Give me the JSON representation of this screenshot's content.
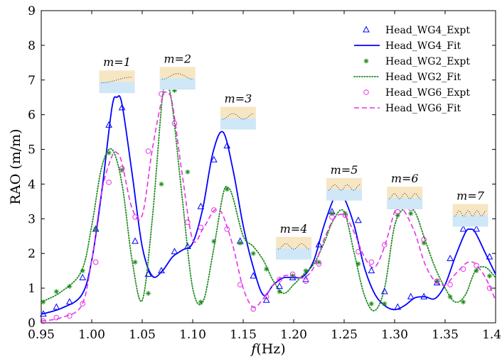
{
  "chart_data": {
    "type": "line",
    "title": "",
    "xlabel_var": "f",
    "xlabel_unit": "(Hz)",
    "ylabel": "RAO (m/m)",
    "xlim": [
      0.95,
      1.4
    ],
    "ylim": [
      0,
      9
    ],
    "xticks": [
      "0.95",
      "1.00",
      "1.05",
      "1.10",
      "1.15",
      "1.20",
      "1.25",
      "1.30",
      "1.35",
      "1.40"
    ],
    "yticks": [
      "0",
      "1",
      "2",
      "3",
      "4",
      "5",
      "6",
      "7",
      "8",
      "9"
    ],
    "grid": false,
    "legend_position": "top-right",
    "series": [
      {
        "name": "Head_WG4_Expt",
        "style": "triangle-marker",
        "color": "#0000ff",
        "x": [
          0.952,
          0.965,
          0.978,
          0.991,
          1.004,
          1.017,
          1.03,
          1.043,
          1.056,
          1.069,
          1.082,
          1.095,
          1.108,
          1.121,
          1.134,
          1.147,
          1.16,
          1.173,
          1.186,
          1.199,
          1.212,
          1.225,
          1.238,
          1.251,
          1.264,
          1.277,
          1.29,
          1.303,
          1.316,
          1.329,
          1.342,
          1.355,
          1.368,
          1.381,
          1.394
        ],
        "y": [
          0.25,
          0.45,
          0.6,
          1.3,
          2.7,
          5.7,
          6.2,
          2.35,
          1.4,
          1.5,
          2.05,
          2.2,
          3.35,
          4.7,
          5.1,
          2.35,
          1.35,
          0.65,
          1.05,
          1.3,
          1.25,
          2.25,
          3.2,
          3.7,
          2.95,
          1.5,
          0.9,
          0.45,
          0.75,
          0.75,
          1.15,
          1.85,
          2.7,
          2.7,
          1.9
        ]
      },
      {
        "name": "Head_WG4_Fit",
        "style": "solid",
        "color": "#0000ff",
        "x": [
          0.95,
          0.97,
          0.99,
          1.0,
          1.01,
          1.02,
          1.025,
          1.03,
          1.04,
          1.05,
          1.06,
          1.07,
          1.08,
          1.09,
          1.1,
          1.11,
          1.12,
          1.13,
          1.14,
          1.15,
          1.16,
          1.17,
          1.18,
          1.19,
          1.2,
          1.21,
          1.22,
          1.23,
          1.24,
          1.245,
          1.25,
          1.26,
          1.27,
          1.28,
          1.29,
          1.3,
          1.31,
          1.32,
          1.33,
          1.34,
          1.35,
          1.36,
          1.37,
          1.375,
          1.38,
          1.39,
          1.4
        ],
        "y": [
          0.25,
          0.42,
          0.8,
          1.8,
          3.8,
          6.2,
          6.5,
          6.3,
          4.3,
          2.2,
          1.35,
          1.5,
          1.9,
          2.1,
          2.3,
          3.3,
          4.9,
          5.5,
          4.4,
          2.8,
          1.6,
          0.8,
          1.1,
          1.3,
          1.3,
          1.35,
          1.8,
          2.8,
          3.6,
          3.7,
          3.6,
          2.8,
          1.6,
          0.85,
          0.5,
          0.38,
          0.5,
          0.72,
          0.75,
          0.7,
          1.1,
          1.9,
          2.6,
          2.7,
          2.6,
          2.0,
          1.4
        ]
      },
      {
        "name": "Head_WG2_Expt",
        "style": "asterisk-marker",
        "color": "#1a8a1a",
        "x": [
          0.952,
          0.965,
          0.978,
          0.991,
          1.004,
          1.017,
          1.03,
          1.043,
          1.056,
          1.069,
          1.082,
          1.095,
          1.108,
          1.121,
          1.134,
          1.147,
          1.16,
          1.173,
          1.186,
          1.199,
          1.212,
          1.225,
          1.238,
          1.251,
          1.264,
          1.277,
          1.29,
          1.303,
          1.316,
          1.329,
          1.342,
          1.355,
          1.368,
          1.381,
          1.394
        ],
        "y": [
          0.6,
          0.9,
          1.05,
          1.5,
          2.7,
          4.9,
          4.4,
          1.75,
          0.85,
          4.0,
          6.7,
          4.35,
          0.6,
          2.35,
          3.85,
          2.3,
          2.0,
          1.55,
          0.9,
          1.35,
          1.5,
          1.75,
          3.15,
          3.15,
          1.7,
          0.55,
          0.55,
          3.1,
          3.15,
          2.3,
          1.2,
          0.75,
          0.6,
          1.5,
          1.35
        ]
      },
      {
        "name": "Head_WG2_Fit",
        "style": "dotted",
        "color": "#1a8a1a",
        "x": [
          0.95,
          0.97,
          0.99,
          1.0,
          1.01,
          1.02,
          1.03,
          1.04,
          1.05,
          1.06,
          1.07,
          1.075,
          1.08,
          1.09,
          1.1,
          1.11,
          1.12,
          1.13,
          1.135,
          1.14,
          1.15,
          1.16,
          1.17,
          1.18,
          1.19,
          1.2,
          1.21,
          1.22,
          1.23,
          1.24,
          1.25,
          1.26,
          1.27,
          1.28,
          1.29,
          1.3,
          1.31,
          1.32,
          1.33,
          1.34,
          1.35,
          1.36,
          1.37,
          1.38,
          1.39,
          1.4
        ],
        "y": [
          0.6,
          0.9,
          1.5,
          2.8,
          4.5,
          5.0,
          4.0,
          1.8,
          0.65,
          3.0,
          6.5,
          6.8,
          6.2,
          3.5,
          1.0,
          0.6,
          2.0,
          3.7,
          3.9,
          3.6,
          2.5,
          2.2,
          1.8,
          1.2,
          0.85,
          1.1,
          1.4,
          1.7,
          2.3,
          3.0,
          3.2,
          2.0,
          0.8,
          0.35,
          1.0,
          2.8,
          3.3,
          3.2,
          2.4,
          1.6,
          1.0,
          0.6,
          0.8,
          1.5,
          1.6,
          1.3
        ]
      },
      {
        "name": "Head_WG6_Expt",
        "style": "circle-marker",
        "color": "#e632e6",
        "x": [
          0.952,
          0.965,
          0.978,
          0.991,
          1.004,
          1.017,
          1.03,
          1.043,
          1.056,
          1.069,
          1.082,
          1.095,
          1.108,
          1.121,
          1.134,
          1.147,
          1.16,
          1.173,
          1.186,
          1.199,
          1.212,
          1.225,
          1.238,
          1.251,
          1.264,
          1.277,
          1.29,
          1.303,
          1.316,
          1.329,
          1.342,
          1.355,
          1.368,
          1.381,
          1.394
        ],
        "y": [
          0.05,
          0.15,
          0.2,
          0.55,
          1.75,
          4.05,
          4.45,
          3.05,
          4.95,
          6.6,
          5.75,
          2.9,
          2.75,
          3.25,
          2.7,
          1.1,
          0.4,
          0.75,
          1.25,
          1.4,
          1.2,
          1.7,
          3.05,
          3.1,
          2.05,
          1.75,
          2.25,
          3.2,
          3.3,
          2.4,
          1.2,
          1.1,
          1.55,
          1.65,
          1.0
        ]
      },
      {
        "name": "Head_WG6_Fit",
        "style": "dashed",
        "color": "#e632e6",
        "x": [
          0.95,
          0.97,
          0.99,
          1.0,
          1.01,
          1.02,
          1.025,
          1.03,
          1.04,
          1.05,
          1.06,
          1.07,
          1.075,
          1.08,
          1.09,
          1.1,
          1.11,
          1.12,
          1.125,
          1.13,
          1.14,
          1.15,
          1.16,
          1.17,
          1.18,
          1.19,
          1.2,
          1.21,
          1.22,
          1.23,
          1.24,
          1.25,
          1.26,
          1.27,
          1.28,
          1.29,
          1.3,
          1.305,
          1.31,
          1.32,
          1.33,
          1.34,
          1.35,
          1.36,
          1.37,
          1.375,
          1.38,
          1.39,
          1.4
        ],
        "y": [
          0.05,
          0.15,
          0.5,
          1.8,
          3.8,
          4.8,
          4.9,
          4.6,
          3.3,
          3.1,
          5.0,
          6.5,
          6.6,
          6.3,
          4.2,
          2.4,
          2.7,
          3.2,
          3.25,
          3.1,
          2.2,
          1.0,
          0.45,
          0.7,
          1.1,
          1.35,
          1.35,
          1.3,
          1.6,
          2.4,
          3.0,
          3.1,
          2.6,
          1.9,
          1.6,
          2.2,
          3.2,
          3.3,
          3.2,
          2.6,
          1.7,
          1.2,
          1.1,
          1.4,
          1.7,
          1.75,
          1.7,
          1.3,
          0.65
        ]
      }
    ],
    "mode_annotations": [
      {
        "label": "m=1",
        "x": 1.025,
        "y": 7.4
      },
      {
        "label": "m=2",
        "x": 1.085,
        "y": 7.5
      },
      {
        "label": "m=3",
        "x": 1.145,
        "y": 6.35
      },
      {
        "label": "m=4",
        "x": 1.2,
        "y": 2.6
      },
      {
        "label": "m=5",
        "x": 1.25,
        "y": 4.3
      },
      {
        "label": "m=6",
        "x": 1.31,
        "y": 4.05
      },
      {
        "label": "m=7",
        "x": 1.375,
        "y": 3.55
      }
    ]
  }
}
